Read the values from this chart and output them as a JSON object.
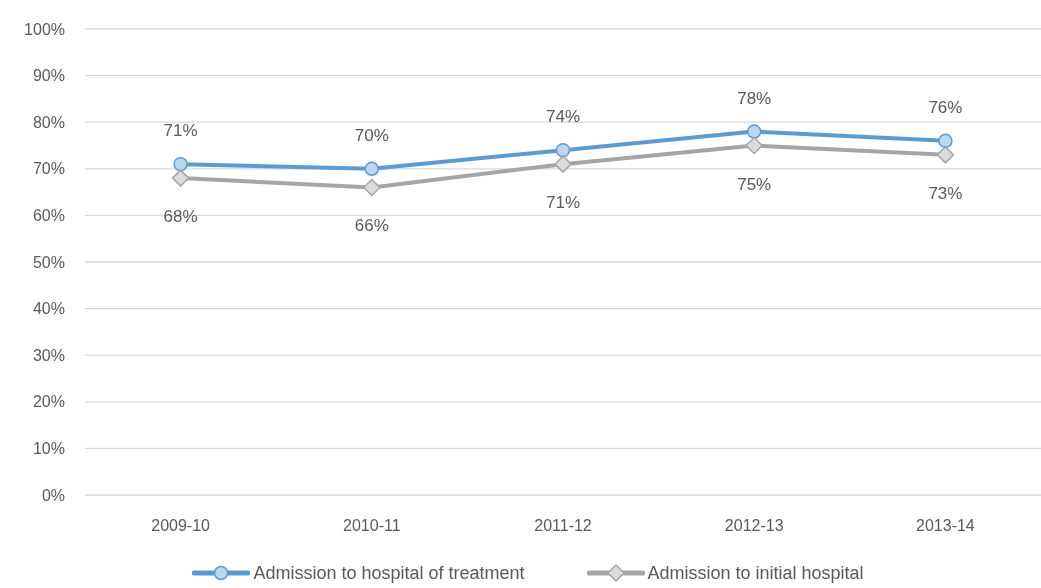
{
  "chart_data": {
    "type": "line",
    "categories": [
      "2009-10",
      "2010-11",
      "2011-12",
      "2012-13",
      "2013-14"
    ],
    "series": [
      {
        "name": "Admission to hospital of treatment",
        "color": "#5b9bd5",
        "marker": "circle",
        "values": [
          71,
          70,
          74,
          78,
          76
        ],
        "value_labels": [
          "71%",
          "70%",
          "74%",
          "78%",
          "76%"
        ]
      },
      {
        "name": "Admission to initial hospital",
        "color": "#a5a5a5",
        "marker": "diamond",
        "values": [
          68,
          66,
          71,
          75,
          73
        ],
        "value_labels": [
          "68%",
          "66%",
          "71%",
          "75%",
          "73%"
        ]
      }
    ],
    "ylim": [
      0,
      100
    ],
    "yticks": [
      {
        "value": 0,
        "label": "0%"
      },
      {
        "value": 10,
        "label": "10%"
      },
      {
        "value": 20,
        "label": "20%"
      },
      {
        "value": 30,
        "label": "30%"
      },
      {
        "value": 40,
        "label": "40%"
      },
      {
        "value": 50,
        "label": "50%"
      },
      {
        "value": 60,
        "label": "60%"
      },
      {
        "value": 70,
        "label": "70%"
      },
      {
        "value": 80,
        "label": "80%"
      },
      {
        "value": 90,
        "label": "90%"
      },
      {
        "value": 100,
        "label": "100%"
      }
    ],
    "grid": "y",
    "legend": "bottom"
  }
}
